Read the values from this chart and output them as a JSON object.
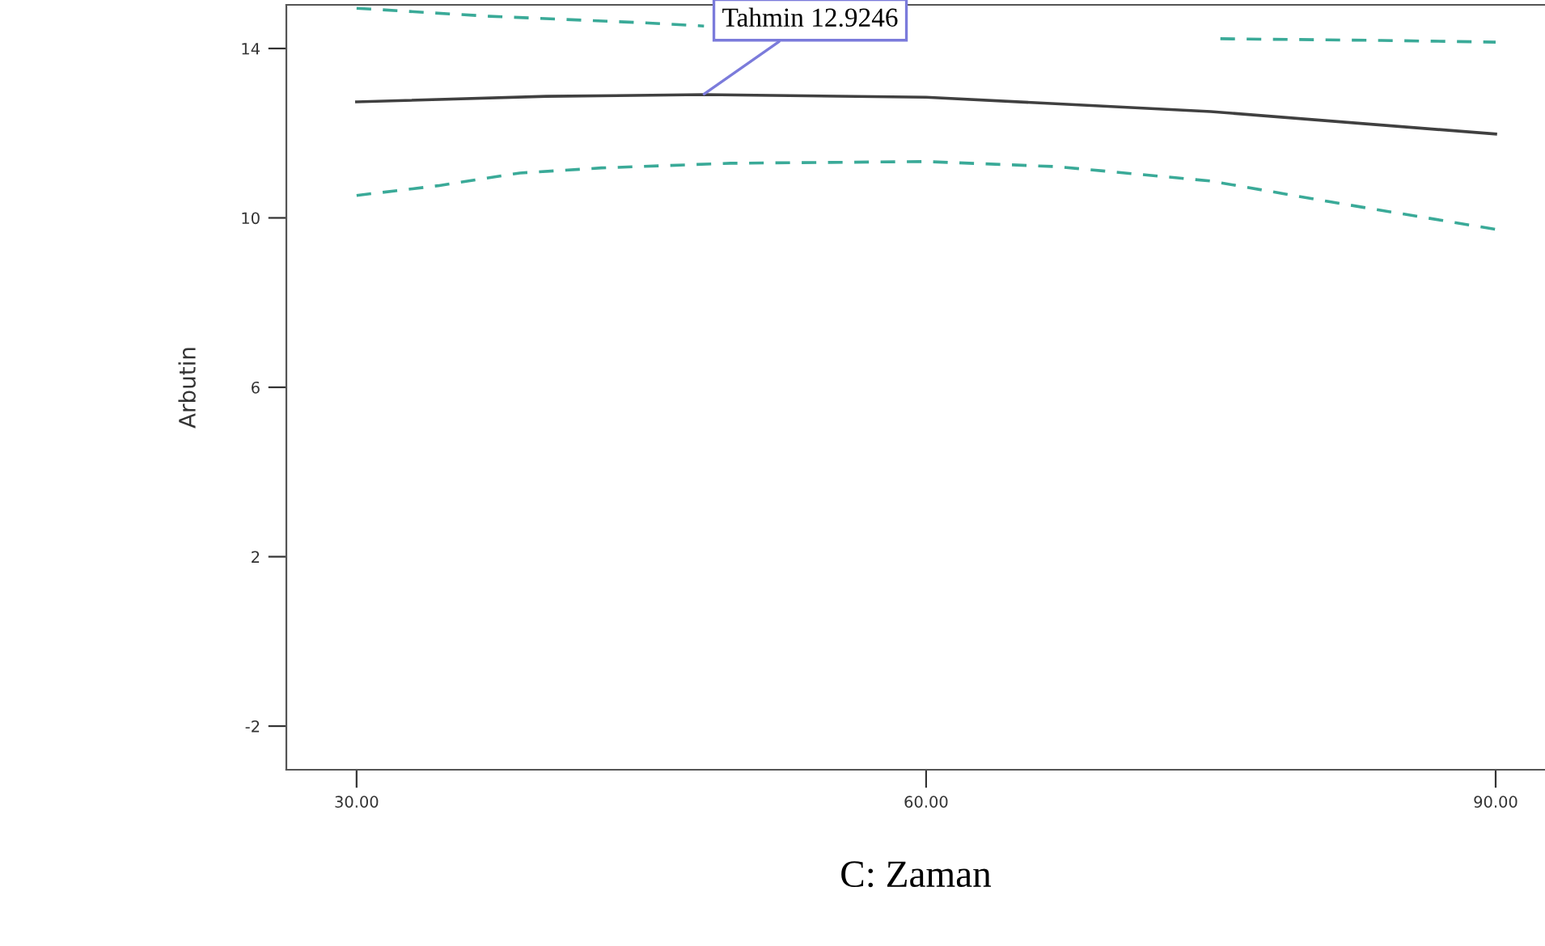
{
  "chart_data": {
    "type": "line",
    "xlabel": "C: Zaman",
    "ylabel": "Arbutin",
    "xlim": [
      26.3,
      92.6
    ],
    "ylim": [
      -3.03,
      15.03
    ],
    "xticks": [
      {
        "value": 30,
        "label": "30.00"
      },
      {
        "value": 60,
        "label": "60.00"
      },
      {
        "value": 90,
        "label": "90.00"
      }
    ],
    "yticks": [
      -2,
      2,
      6,
      10,
      14
    ],
    "grid": false,
    "legend": false,
    "marker": "none",
    "series": [
      {
        "color": "#404040",
        "line_style": "solid",
        "x": [
          30,
          40,
          48.3,
          60,
          75,
          90
        ],
        "values": [
          12.74,
          12.87,
          12.91,
          12.85,
          12.51,
          11.98
        ]
      },
      {
        "color": "#3aaa98",
        "line_style": "dashed",
        "x": [
          30,
          37,
          45,
          48.3,
          60,
          75.5,
          84,
          90
        ],
        "values": [
          14.95,
          14.76,
          14.61,
          14.53,
          null,
          14.23,
          14.19,
          14.15
        ]
      },
      {
        "color": "#3aaa98",
        "line_style": "dashed",
        "x": [
          30,
          34.3,
          38.6,
          42.9,
          49.7,
          60,
          66.9,
          75,
          81.4,
          90
        ],
        "values": [
          10.53,
          10.76,
          11.06,
          11.18,
          11.29,
          11.33,
          11.21,
          10.87,
          10.37,
          9.73
        ]
      }
    ],
    "annotations": [
      {
        "text": "Tahmin 12.9246",
        "x": 48.3,
        "y": 12.9246
      }
    ]
  }
}
